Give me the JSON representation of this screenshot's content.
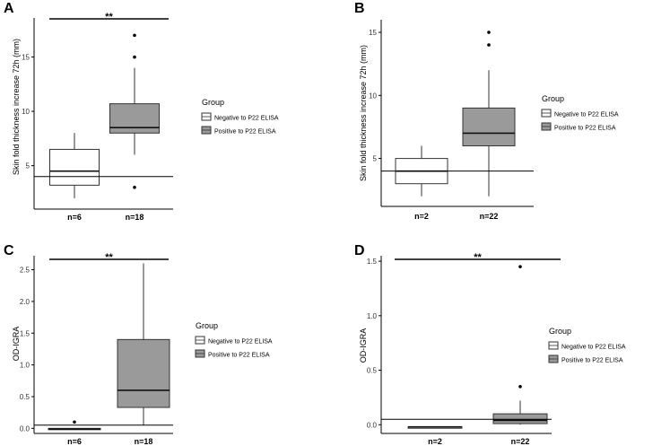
{
  "legend_title": "Group",
  "legend_labels": [
    "Negative to P22 ELISA",
    "Positive to P22 ELISA"
  ],
  "group_colors": [
    "#ffffff",
    "#9a9a9a"
  ],
  "significance": "**",
  "chart_data": [
    {
      "panel": "A",
      "type": "boxplot",
      "ylabel": "Skin fold thickness increase 72h (mm)",
      "yticks": [
        5,
        10,
        15
      ],
      "ylim": [
        1,
        18.6
      ],
      "reference_line": 4,
      "significance": "**",
      "groups": [
        {
          "label": "n=6",
          "name": "Negative to P22 ELISA",
          "min": 2,
          "q1": 3.2,
          "median": 4.5,
          "q3": 6.5,
          "max": 8,
          "outliers": []
        },
        {
          "label": "n=18",
          "name": "Positive to P22 ELISA",
          "min": 6,
          "q1": 8,
          "median": 8.5,
          "q3": 10.7,
          "max": 14,
          "outliers": [
            3,
            15,
            17
          ]
        }
      ]
    },
    {
      "panel": "B",
      "type": "boxplot",
      "ylabel": "Skin fold thickness increase 72h (mm)",
      "yticks": [
        5,
        10,
        15
      ],
      "ylim": [
        1.2,
        16
      ],
      "reference_line": 4,
      "significance": "",
      "groups": [
        {
          "label": "n=2",
          "name": "Negative to P22 ELISA",
          "min": 2,
          "q1": 3,
          "median": 4,
          "q3": 5,
          "max": 6,
          "outliers": []
        },
        {
          "label": "n=22",
          "name": "Positive to P22 ELISA",
          "min": 2,
          "q1": 6,
          "median": 7,
          "q3": 9,
          "max": 12,
          "outliers": [
            14,
            15
          ]
        }
      ]
    },
    {
      "panel": "C",
      "type": "boxplot",
      "ylabel": "OD-IGRA",
      "yticks": [
        0.0,
        0.5,
        1.0,
        1.5,
        2.0,
        2.5
      ],
      "ytick_labels": [
        "0.0",
        "0.5",
        "1.0",
        "1.5",
        "2.0",
        "2.5"
      ],
      "ylim": [
        -0.08,
        2.72
      ],
      "reference_line": 0.05,
      "significance": "**",
      "groups": [
        {
          "label": "n=6",
          "name": "Negative to P22 ELISA",
          "min": -0.02,
          "q1": -0.02,
          "median": -0.01,
          "q3": 0.0,
          "max": 0.0,
          "outliers": [
            0.1
          ]
        },
        {
          "label": "n=18",
          "name": "Positive to P22 ELISA",
          "min": 0.05,
          "q1": 0.33,
          "median": 0.6,
          "q3": 1.4,
          "max": 2.6,
          "outliers": []
        }
      ]
    },
    {
      "panel": "D",
      "type": "boxplot",
      "ylabel": "OD-IGRA",
      "yticks": [
        0.0,
        0.5,
        1.0,
        1.5
      ],
      "ytick_labels": [
        "0.0",
        "0.5",
        "1.0",
        "1.5"
      ],
      "ylim": [
        -0.08,
        1.55
      ],
      "reference_line": 0.05,
      "significance": "**",
      "groups": [
        {
          "label": "n=2",
          "name": "Negative to P22 ELISA",
          "min": -0.02,
          "q1": -0.02,
          "median": -0.02,
          "q3": -0.02,
          "max": -0.02,
          "outliers": []
        },
        {
          "label": "n=22",
          "name": "Positive to P22 ELISA",
          "min": 0.0,
          "q1": 0.01,
          "median": 0.04,
          "q3": 0.1,
          "max": 0.22,
          "outliers": [
            0.35,
            1.45
          ]
        }
      ]
    }
  ]
}
